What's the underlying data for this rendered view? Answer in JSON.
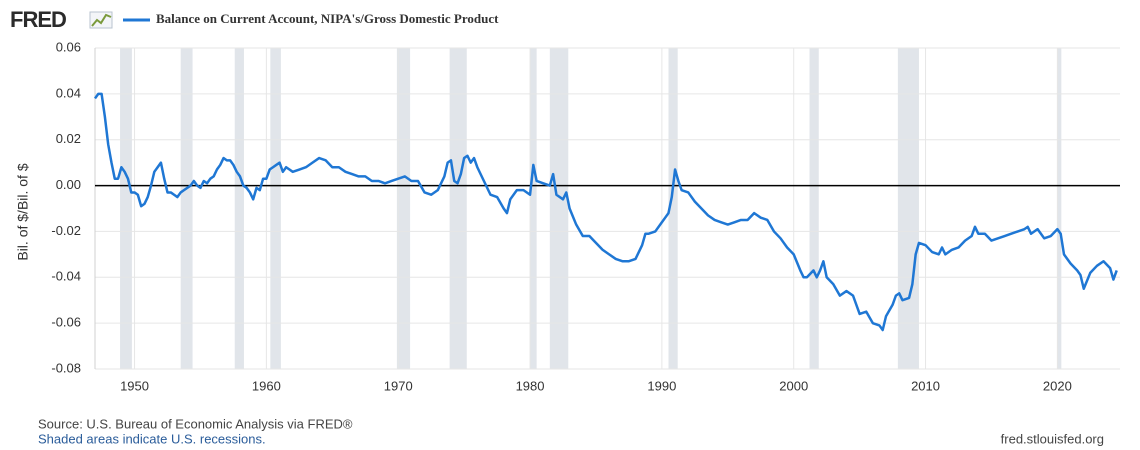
{
  "chart_data": {
    "type": "line",
    "logo": "FRED",
    "legend_label": "Balance on Current Account, NIPA's/Gross Domestic Product",
    "y_axis_label": "Bil. of $/Bil. of $",
    "source": "Source: U.S. Bureau of Economic Analysis via FRED®",
    "note": "Shaded areas indicate U.S. recessions.",
    "site": "fred.stlouisfed.org",
    "color": "#1f77d4",
    "recession_color": "#e1e5ea",
    "grid": true,
    "xlim": [
      1947,
      2024.75
    ],
    "xticks": [
      1950,
      1960,
      1970,
      1980,
      1990,
      2000,
      2010,
      2020
    ],
    "ylim": [
      -0.08,
      0.06
    ],
    "yticks": [
      0.06,
      0.04,
      0.02,
      {
        "value": 0,
        "label": "0.00"
      },
      -0.02,
      -0.04,
      -0.06,
      -0.08
    ],
    "recessions": [
      [
        1948.9,
        1949.8
      ],
      [
        1953.5,
        1954.4
      ],
      [
        1957.6,
        1958.3
      ],
      [
        1960.3,
        1961.1
      ],
      [
        1969.9,
        1970.9
      ],
      [
        1973.9,
        1975.2
      ],
      [
        1980.0,
        1980.5
      ],
      [
        1981.5,
        1982.9
      ],
      [
        1990.5,
        1991.2
      ],
      [
        2001.2,
        2001.9
      ],
      [
        2007.9,
        2009.5
      ],
      [
        2020.0,
        2020.3
      ]
    ],
    "x": [
      1947,
      1947.25,
      1947.5,
      1947.75,
      1948,
      1948.25,
      1948.5,
      1948.75,
      1949,
      1949.25,
      1949.5,
      1949.75,
      1950,
      1950.25,
      1950.5,
      1950.75,
      1951,
      1951.25,
      1951.5,
      1951.75,
      1952,
      1952.25,
      1952.5,
      1952.75,
      1953,
      1953.25,
      1953.5,
      1953.75,
      1954,
      1954.25,
      1954.5,
      1954.75,
      1955,
      1955.25,
      1955.5,
      1955.75,
      1956,
      1956.25,
      1956.5,
      1956.75,
      1957,
      1957.25,
      1957.5,
      1957.75,
      1958,
      1958.25,
      1958.5,
      1958.75,
      1959,
      1959.25,
      1959.5,
      1959.75,
      1960,
      1960.25,
      1960.5,
      1960.75,
      1961,
      1961.25,
      1961.5,
      1961.75,
      1962,
      1962.5,
      1963,
      1963.5,
      1964,
      1964.5,
      1965,
      1965.5,
      1966,
      1966.5,
      1967,
      1967.5,
      1968,
      1968.5,
      1969,
      1969.5,
      1970,
      1970.5,
      1971,
      1971.5,
      1972,
      1972.5,
      1973,
      1973.5,
      1973.75,
      1974,
      1974.25,
      1974.5,
      1974.75,
      1975,
      1975.25,
      1975.5,
      1975.75,
      1976,
      1976.5,
      1977,
      1977.5,
      1978,
      1978.25,
      1978.5,
      1979,
      1979.5,
      1980,
      1980.25,
      1980.5,
      1981,
      1981.5,
      1981.75,
      1982,
      1982.5,
      1982.75,
      1983,
      1983.5,
      1984,
      1984.5,
      1985,
      1985.5,
      1986,
      1986.5,
      1987,
      1987.5,
      1988,
      1988.5,
      1988.75,
      1989,
      1989.5,
      1990,
      1990.25,
      1990.5,
      1990.75,
      1991,
      1991.25,
      1991.5,
      1992,
      1992.5,
      1993,
      1993.5,
      1994,
      1994.5,
      1995,
      1995.5,
      1996,
      1996.5,
      1997,
      1997.5,
      1998,
      1998.5,
      1999,
      1999.5,
      2000,
      2000.5,
      2000.75,
      2001,
      2001.5,
      2001.75,
      2002,
      2002.25,
      2002.5,
      2003,
      2003.5,
      2004,
      2004.5,
      2005,
      2005.5,
      2006,
      2006.5,
      2006.75,
      2007,
      2007.5,
      2007.75,
      2008,
      2008.25,
      2008.75,
      2009,
      2009.25,
      2009.5,
      2010,
      2010.5,
      2011,
      2011.25,
      2011.5,
      2012,
      2012.5,
      2013,
      2013.5,
      2013.75,
      2014,
      2014.5,
      2015,
      2015.5,
      2016,
      2016.5,
      2017,
      2017.5,
      2017.75,
      2018,
      2018.5,
      2019,
      2019.5,
      2020,
      2020.25,
      2020.5,
      2021,
      2021.5,
      2021.75,
      2022,
      2022.5,
      2023,
      2023.5,
      2024,
      2024.25,
      2024.5
    ],
    "values": [
      0.038,
      0.04,
      0.04,
      0.03,
      0.018,
      0.01,
      0.003,
      0.003,
      0.008,
      0.006,
      0.003,
      -0.003,
      -0.003,
      -0.004,
      -0.009,
      -0.008,
      -0.005,
      0,
      0.006,
      0.008,
      0.01,
      0.003,
      -0.003,
      -0.003,
      -0.004,
      -0.005,
      -0.003,
      -0.002,
      -0.001,
      0,
      0.002,
      0,
      -0.001,
      0.002,
      0.001,
      0.003,
      0.004,
      0.007,
      0.009,
      0.012,
      0.011,
      0.011,
      0.009,
      0.006,
      0.004,
      0,
      -0.001,
      -0.003,
      -0.006,
      -0.001,
      -0.002,
      0.003,
      0.003,
      0.007,
      0.008,
      0.009,
      0.01,
      0.006,
      0.008,
      0.007,
      0.006,
      0.007,
      0.008,
      0.01,
      0.012,
      0.011,
      0.008,
      0.008,
      0.006,
      0.005,
      0.004,
      0.004,
      0.002,
      0.002,
      0.001,
      0.002,
      0.003,
      0.004,
      0.002,
      0.002,
      -0.003,
      -0.004,
      -0.002,
      0.004,
      0.01,
      0.011,
      0.002,
      0.001,
      0.005,
      0.012,
      0.013,
      0.01,
      0.012,
      0.008,
      0.002,
      -0.004,
      -0.005,
      -0.01,
      -0.012,
      -0.006,
      -0.002,
      -0.002,
      -0.004,
      0.009,
      0.002,
      0.001,
      0,
      0.005,
      -0.004,
      -0.006,
      -0.003,
      -0.01,
      -0.017,
      -0.022,
      -0.022,
      -0.025,
      -0.028,
      -0.03,
      -0.032,
      -0.033,
      -0.033,
      -0.032,
      -0.026,
      -0.021,
      -0.021,
      -0.02,
      -0.016,
      -0.014,
      -0.012,
      -0.005,
      0.007,
      0.002,
      -0.002,
      -0.003,
      -0.007,
      -0.01,
      -0.013,
      -0.015,
      -0.016,
      -0.017,
      -0.016,
      -0.015,
      -0.015,
      -0.012,
      -0.014,
      -0.015,
      -0.02,
      -0.023,
      -0.027,
      -0.03,
      -0.037,
      -0.04,
      -0.04,
      -0.037,
      -0.04,
      -0.037,
      -0.033,
      -0.04,
      -0.043,
      -0.048,
      -0.046,
      -0.048,
      -0.056,
      -0.055,
      -0.06,
      -0.061,
      -0.063,
      -0.057,
      -0.052,
      -0.048,
      -0.047,
      -0.05,
      -0.049,
      -0.043,
      -0.03,
      -0.025,
      -0.026,
      -0.029,
      -0.03,
      -0.027,
      -0.03,
      -0.028,
      -0.027,
      -0.024,
      -0.022,
      -0.018,
      -0.021,
      -0.021,
      -0.024,
      -0.023,
      -0.022,
      -0.021,
      -0.02,
      -0.019,
      -0.018,
      -0.021,
      -0.019,
      -0.023,
      -0.022,
      -0.019,
      -0.021,
      -0.03,
      -0.034,
      -0.037,
      -0.039,
      -0.045,
      -0.038,
      -0.035,
      -0.033,
      -0.036,
      -0.041,
      -0.037
    ]
  }
}
